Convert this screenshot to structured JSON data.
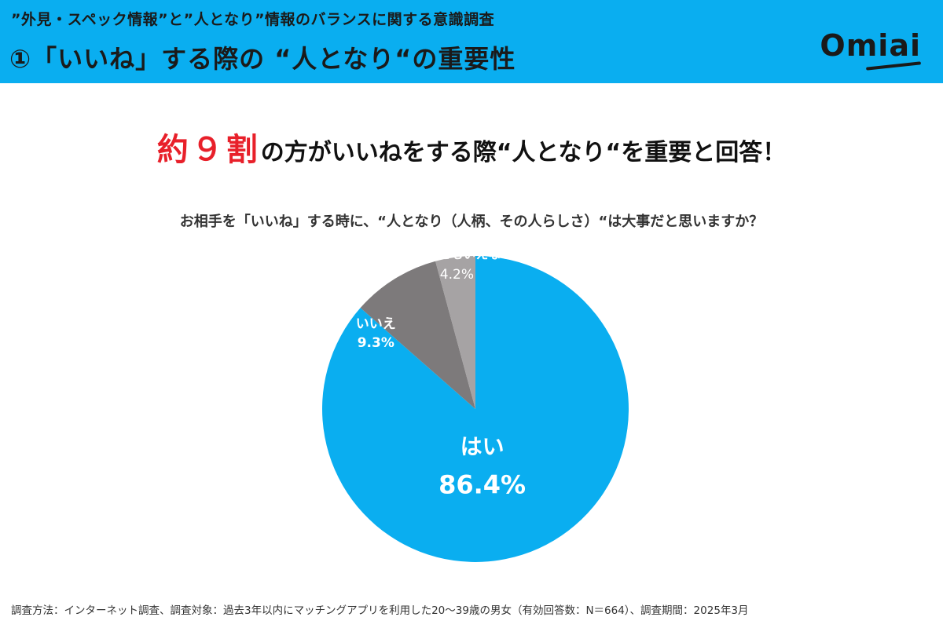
{
  "header": {
    "subtitle": "”外見・スペック情報”と”人となり”情報のバランスに関する意識調査",
    "title": "①「いいね」する際の “人となり“の重要性",
    "logo": "Omiai"
  },
  "headline": {
    "accent": "約９割",
    "rest": "の方がいいねをする際“人となり“を重要と回答！"
  },
  "chart_data": {
    "type": "pie",
    "title": "お相手を「いいね」する時に、“人となり（人柄、その人らしさ）“は大事だと思いますか？",
    "slices": [
      {
        "label": "はい",
        "value": 86.4,
        "value_label": "86.4%",
        "color": "#0aaef0"
      },
      {
        "label": "いいえ",
        "value": 9.3,
        "value_label": "9.3%",
        "color": "#7d7a7b"
      },
      {
        "label": "どちらともいえない",
        "value": 4.2,
        "value_label": "4.2%",
        "color": "#a6a3a4"
      }
    ],
    "start": "12 o'clock",
    "direction": "clockwise"
  },
  "footnote": "調査方法：インターネット調査、調査対象：過去3年以内にマッチングアプリを利用した20〜39歳の男女（有効回答数：N＝664）、調査期間：2025年3月"
}
